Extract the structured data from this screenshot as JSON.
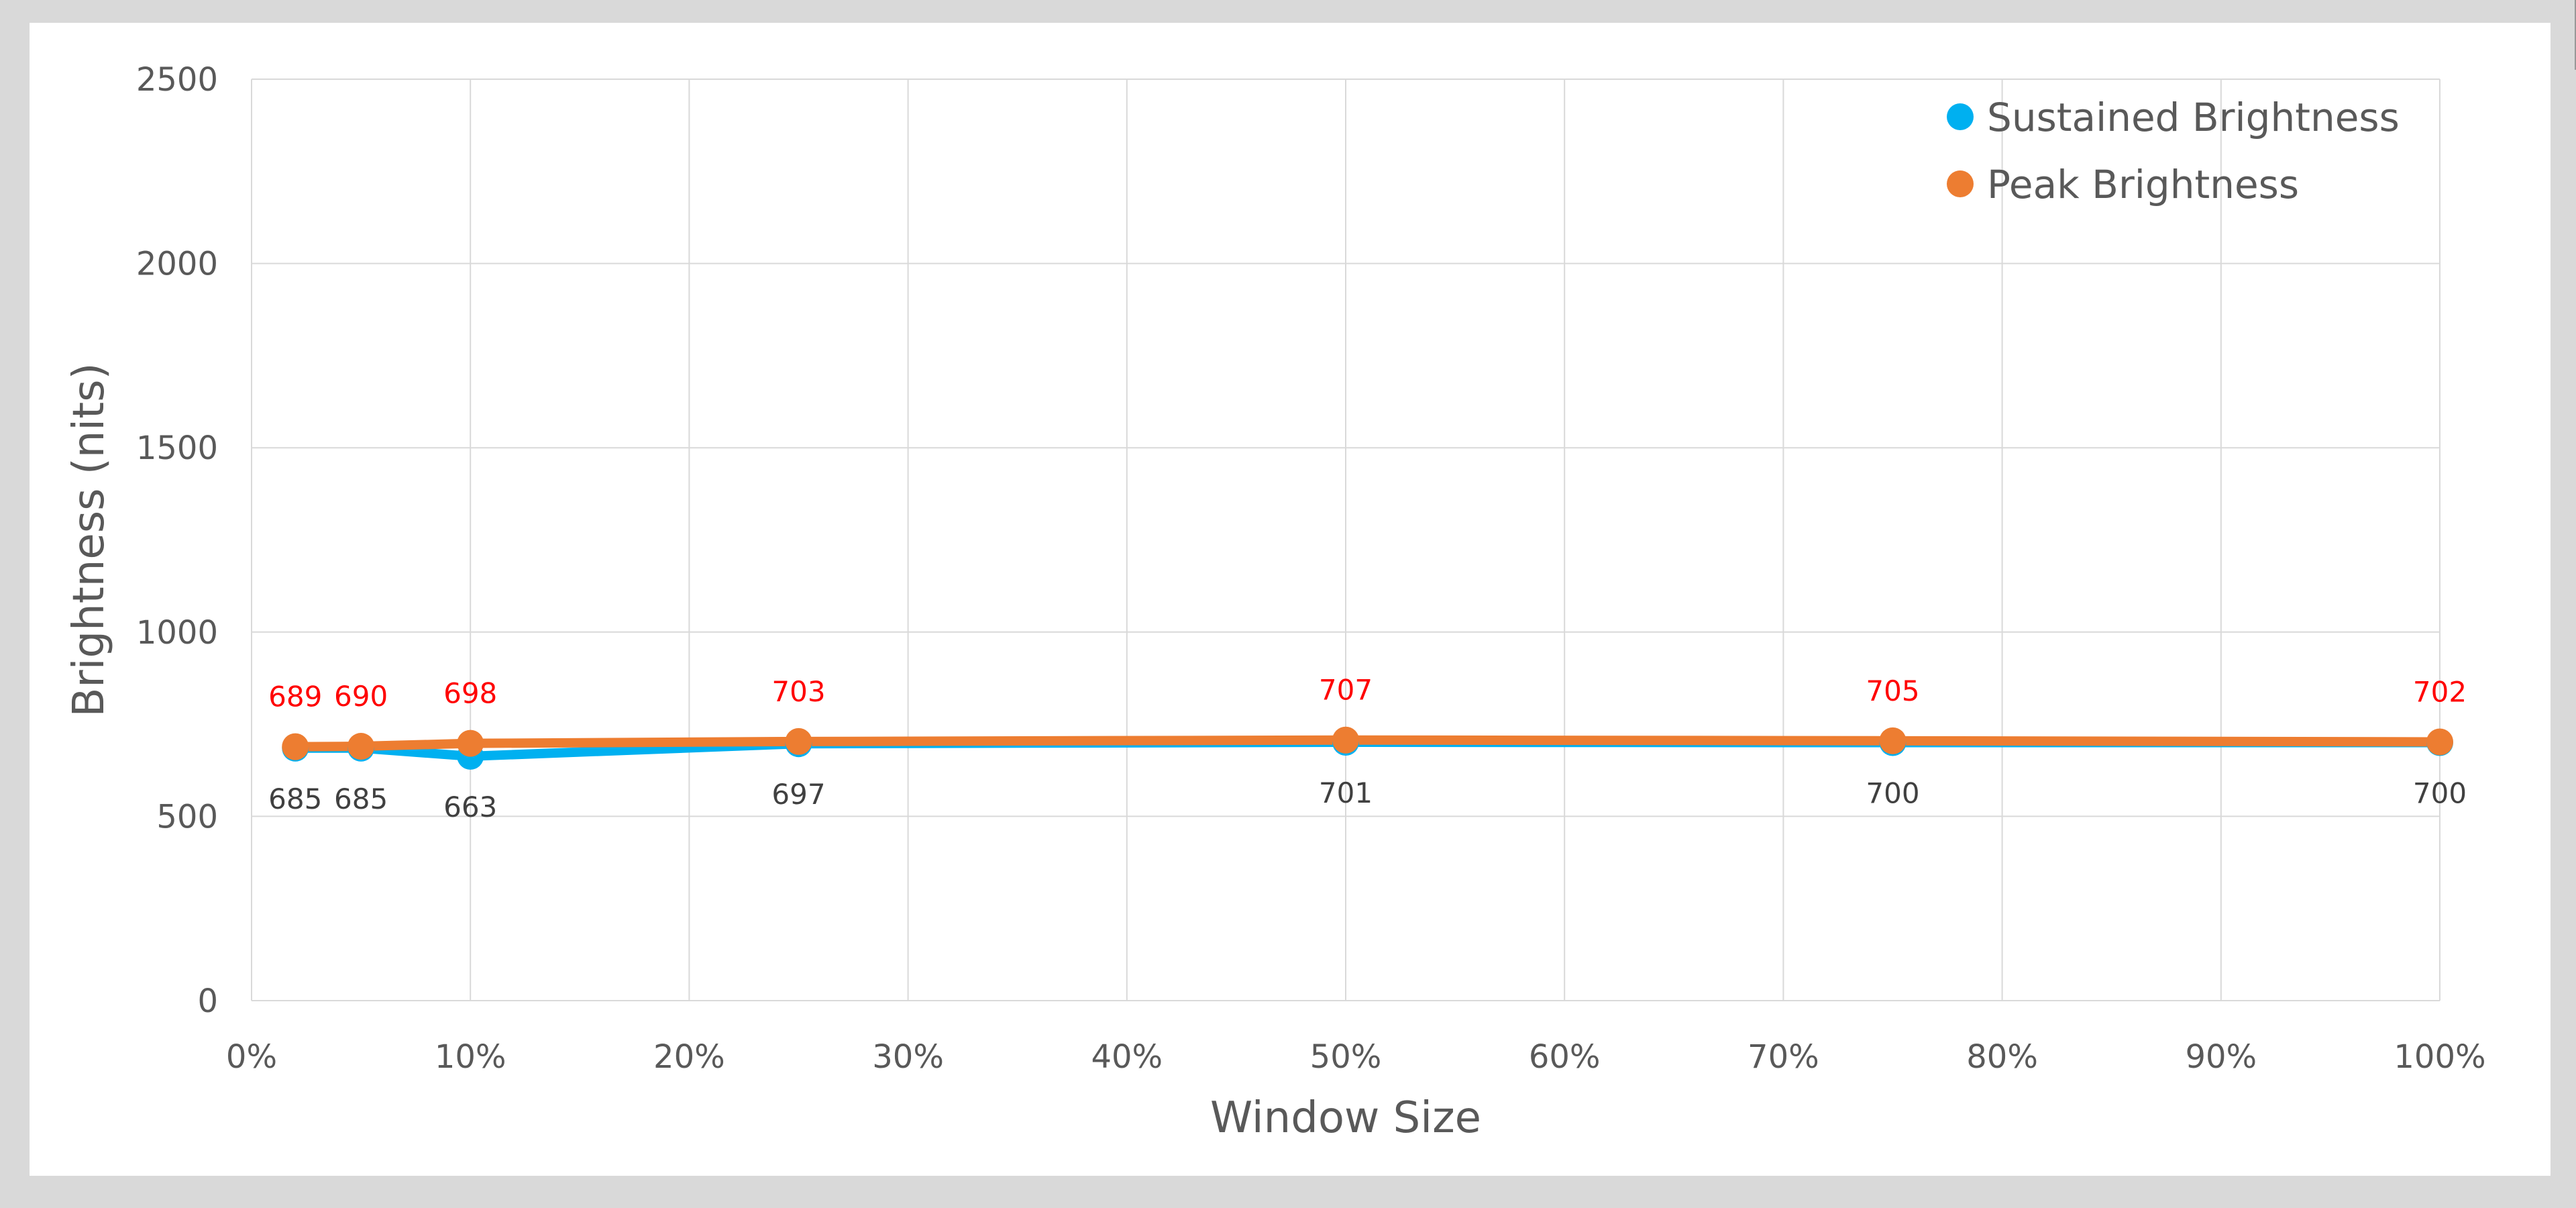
{
  "chart_data": {
    "type": "line",
    "xlabel": "Window Size",
    "ylabel": "Brightness (nits)",
    "x": [
      2,
      5,
      10,
      25,
      50,
      75,
      100
    ],
    "xlim": [
      0,
      100
    ],
    "ylim": [
      0,
      2500
    ],
    "x_ticks": [
      "0%",
      "10%",
      "20%",
      "30%",
      "40%",
      "50%",
      "60%",
      "70%",
      "80%",
      "90%",
      "100%"
    ],
    "y_ticks": [
      "0",
      "500",
      "1000",
      "1500",
      "2000",
      "2500"
    ],
    "grid": true,
    "legend": "top-right",
    "series": [
      {
        "name": "Sustained Brightness",
        "color": "#00b0f0",
        "label_color": "#404040",
        "values": [
          685,
          685,
          663,
          697,
          701,
          700,
          700
        ]
      },
      {
        "name": "Peak Brightness",
        "color": "#ed7d31",
        "label_color": "#ff0000",
        "values": [
          689,
          690,
          698,
          703,
          707,
          705,
          702
        ]
      }
    ]
  }
}
